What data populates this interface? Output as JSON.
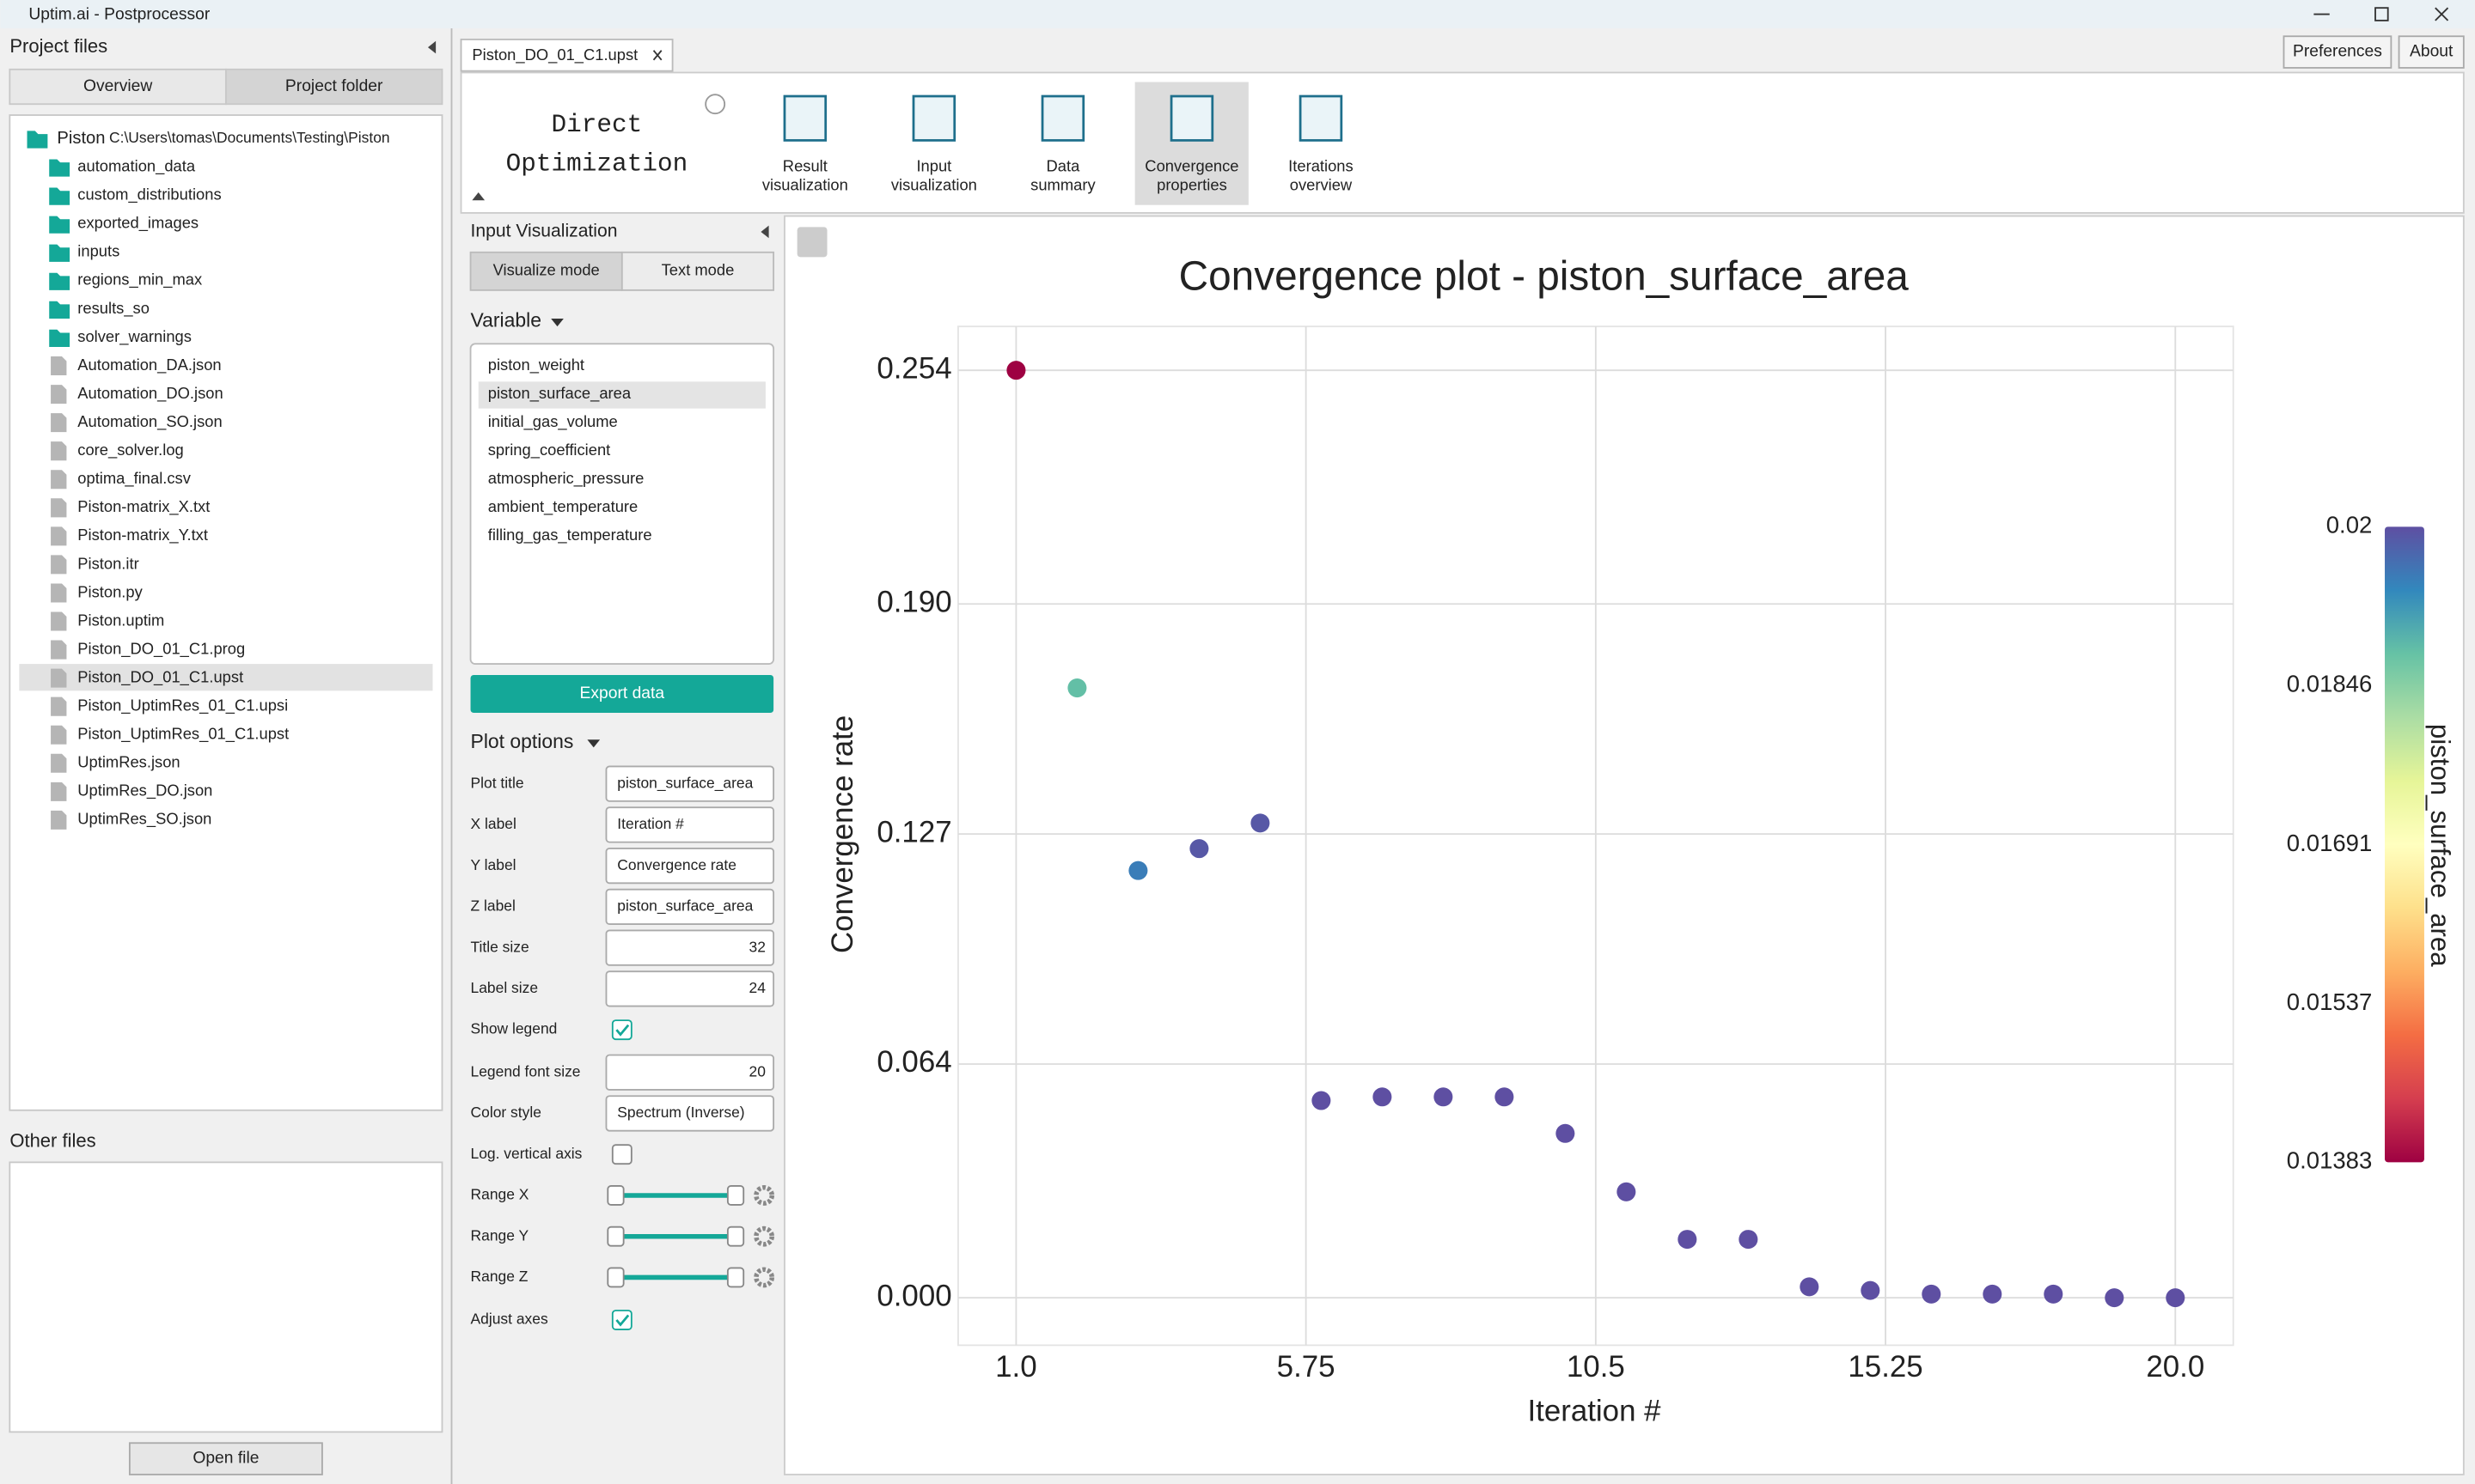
{
  "window": {
    "title": "Uptim.ai - Postprocessor"
  },
  "project_files": {
    "title": "Project files",
    "tabs": [
      "Overview",
      "Project folder"
    ],
    "root": {
      "name": "Piston",
      "path": "C:\\Users\\tomas\\Documents\\Testing\\Piston"
    },
    "folders": [
      "automation_data",
      "custom_distributions",
      "exported_images",
      "inputs",
      "regions_min_max",
      "results_so",
      "solver_warnings"
    ],
    "files": [
      "Automation_DA.json",
      "Automation_DO.json",
      "Automation_SO.json",
      "core_solver.log",
      "optima_final.csv",
      "Piston-matrix_X.txt",
      "Piston-matrix_Y.txt",
      "Piston.itr",
      "Piston.py",
      "Piston.uptim",
      "Piston_DO_01_C1.prog",
      "Piston_DO_01_C1.upst",
      "Piston_UptimRes_01_C1.upsi",
      "Piston_UptimRes_01_C1.upst",
      "UptimRes.json",
      "UptimRes_DO.json",
      "UptimRes_SO.json"
    ]
  },
  "other_files": {
    "title": "Other files",
    "button": "Open file"
  },
  "editor": {
    "tab": "Piston_DO_01_C1.upst",
    "buttons": [
      "Preferences",
      "About"
    ],
    "toolbar": {
      "title": [
        "Direct",
        "Optimization"
      ],
      "tools": [
        [
          "Result",
          "visualization"
        ],
        [
          "Input",
          "visualization"
        ],
        [
          "Data",
          "summary"
        ],
        [
          "Convergence",
          "properties"
        ],
        [
          "Iterations",
          "overview"
        ]
      ]
    }
  },
  "input_panel": {
    "title": "Input Visualization",
    "modes": [
      "Visualize mode",
      "Text mode"
    ],
    "variable_label": "Variable",
    "variables": [
      "piston_weight",
      "piston_surface_area",
      "initial_gas_volume",
      "spring_coefficient",
      "atmospheric_pressure",
      "ambient_temperature",
      "filling_gas_temperature"
    ],
    "export_button": "Export data",
    "plot_options_label": "Plot options",
    "rows": [
      {
        "label": "Plot title",
        "value": "piston_surface_area"
      },
      {
        "label": "X label",
        "value": "Iteration #"
      },
      {
        "label": "Y label",
        "value": "Convergence rate"
      },
      {
        "label": "Z label",
        "value": "piston_surface_area"
      },
      {
        "label": "Title size",
        "value": 32
      },
      {
        "label": "Label size",
        "value": 24
      },
      {
        "label": "Show legend",
        "checked": true
      },
      {
        "label": "Legend font size",
        "value": 20
      },
      {
        "label": "Color style",
        "value": "Spectrum (Inverse)"
      },
      {
        "label": "Log. vertical axis",
        "checked": false
      },
      {
        "label": "Range X"
      },
      {
        "label": "Range Y"
      },
      {
        "label": "Range Z"
      },
      {
        "label": "Adjust axes",
        "checked": true
      }
    ]
  },
  "chart": {
    "type": "scatter",
    "title": "Convergence plot - piston_surface_area",
    "xlabel": "Iteration #",
    "ylabel": "Convergence rate",
    "zlabel": "piston_surface_area",
    "x": [
      1,
      2,
      3,
      4,
      5,
      6,
      7,
      8,
      9,
      10,
      11,
      12,
      13,
      14,
      15,
      16,
      17,
      18,
      19,
      20
    ],
    "values": [
      0.254,
      0.167,
      0.117,
      0.123,
      0.13,
      0.054,
      0.055,
      0.055,
      0.055,
      0.045,
      0.029,
      0.016,
      0.016,
      0.003,
      0.002,
      0.001,
      0.001,
      0.001,
      0.0,
      0.0
    ],
    "z": [
      0.01383,
      0.0188,
      0.0195,
      0.0199,
      0.0199,
      0.02,
      0.02,
      0.02,
      0.02,
      0.02,
      0.02,
      0.02,
      0.02,
      0.02,
      0.02,
      0.02,
      0.02,
      0.02,
      0.02,
      0.02
    ],
    "xlim": [
      0.05,
      20.95
    ],
    "ylim": [
      -0.013,
      0.266
    ],
    "zlim": [
      0.01383,
      0.02
    ],
    "xticks": [
      {
        "value": 1,
        "label": "1.0"
      },
      5.75,
      10.5,
      15.25,
      {
        "value": 20,
        "label": "20.0"
      }
    ],
    "yticks": [
      {
        "value": 0,
        "label": "0.000"
      },
      0.064,
      0.127,
      {
        "value": 0.19,
        "label": "0.190"
      },
      0.254
    ],
    "zticks": [
      0.01383,
      0.01537,
      0.01691,
      0.01846,
      0.02
    ],
    "colormap": [
      "#9e0142",
      "#d53e4f",
      "#f46d43",
      "#fdae61",
      "#fee08b",
      "#ffffbf",
      "#e6f598",
      "#abdda4",
      "#66c2a5",
      "#3288bd",
      "#5e4fa2"
    ],
    "grid": true
  }
}
